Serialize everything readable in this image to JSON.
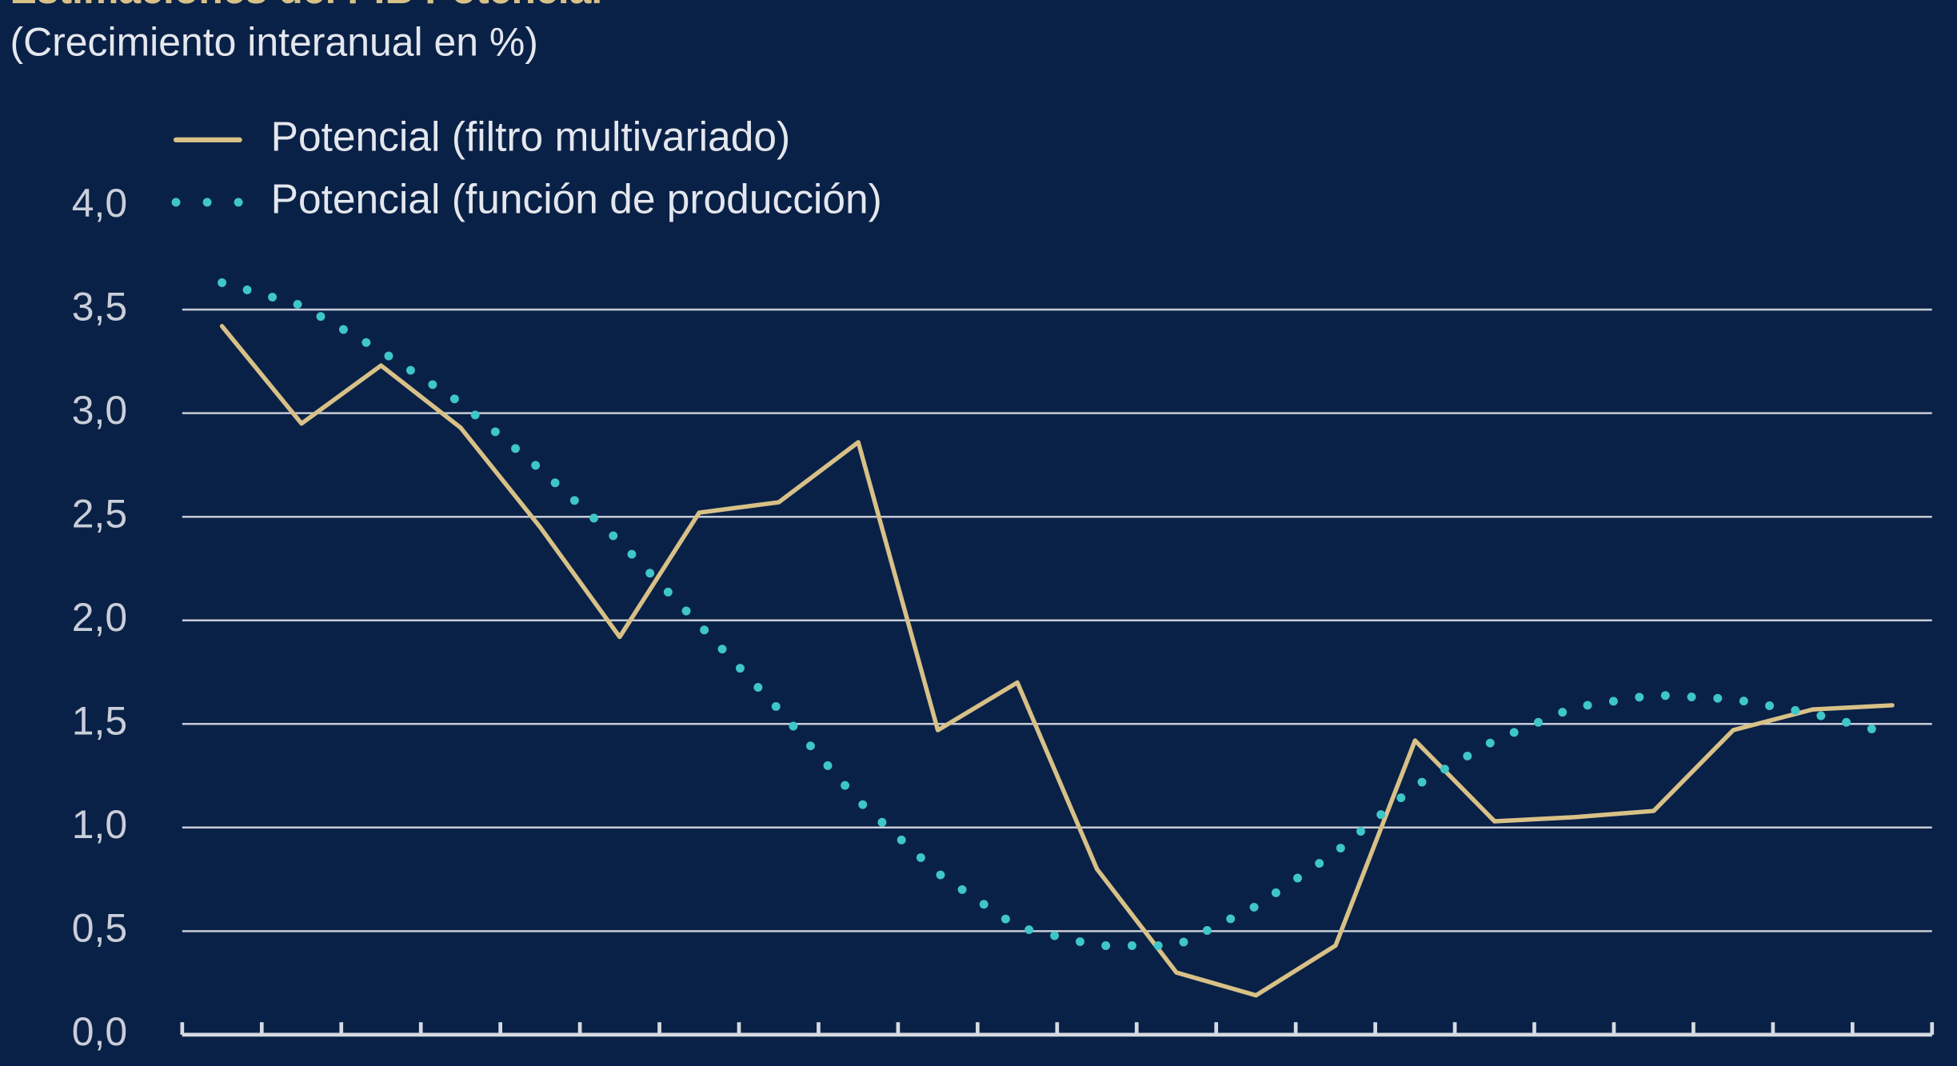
{
  "chart_data": {
    "type": "line",
    "title": "Estimaciones del PIB Potencial",
    "subtitle": "(Crecimiento interanual en %)",
    "categories": [
      null,
      null,
      null,
      null,
      null,
      null,
      null,
      null,
      null,
      null,
      null,
      null,
      null,
      null,
      null,
      null,
      null,
      null,
      null,
      null,
      null,
      null
    ],
    "series": [
      {
        "name": "Potencial (filtro multivariado)",
        "color": "#d8c187",
        "style": "solid",
        "values": [
          3.42,
          2.95,
          3.23,
          2.93,
          2.45,
          1.92,
          2.52,
          2.57,
          2.86,
          1.47,
          1.7,
          0.8,
          0.3,
          0.19,
          0.43,
          1.42,
          1.03,
          1.05,
          1.08,
          1.47,
          1.57,
          1.59
        ]
      },
      {
        "name": "Potencial (función de producción)",
        "color": "#3ec6c8",
        "style": "dotted",
        "values": [
          3.63,
          3.52,
          3.3,
          3.05,
          2.73,
          2.38,
          1.98,
          1.57,
          1.13,
          0.78,
          0.52,
          0.43,
          0.43,
          0.62,
          0.88,
          1.2,
          1.42,
          1.58,
          1.64,
          1.62,
          1.55,
          1.45
        ]
      }
    ],
    "ylim": [
      0,
      4
    ],
    "yticks": [
      {
        "value": 0,
        "label": "0,0"
      },
      {
        "value": 0.5,
        "label": "0,5"
      },
      {
        "value": 1,
        "label": "1,0"
      },
      {
        "value": 1.5,
        "label": "1,5"
      },
      {
        "value": 2,
        "label": "2,0"
      },
      {
        "value": 2.5,
        "label": "2,5"
      },
      {
        "value": 3,
        "label": "3,0"
      },
      {
        "value": 3.5,
        "label": "3,5"
      },
      {
        "value": 4,
        "label": "4,0"
      }
    ],
    "grid": true,
    "legend": "top-left"
  }
}
